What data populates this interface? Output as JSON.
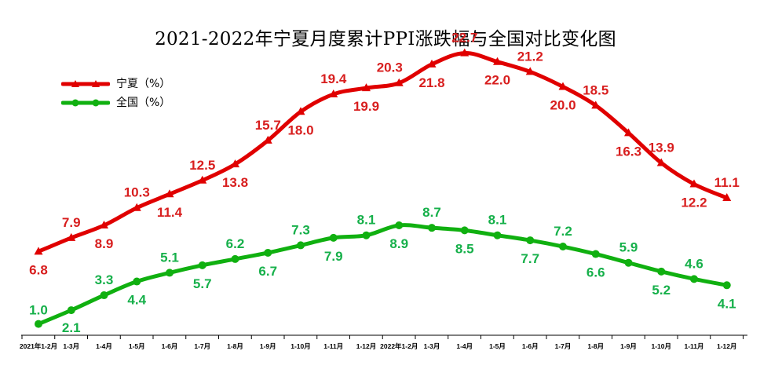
{
  "chart_data": {
    "type": "line",
    "title": "2021-2022年宁夏月度累计PPI涨跌幅与全国对比变化图",
    "categories": [
      "2021年1-2月",
      "1-3月",
      "1-4月",
      "1-5月",
      "1-6月",
      "1-7月",
      "1-8月",
      "1-9月",
      "1-10月",
      "1-11月",
      "1-12月",
      "2022年1-2月",
      "1-3月",
      "1-4月",
      "1-5月",
      "1-6月",
      "1-7月",
      "1-8月",
      "1-9月",
      "1-10月",
      "1-11月",
      "1-12月"
    ],
    "series": [
      {
        "name": "宁夏（%）",
        "color": "#e00000",
        "marker": "triangle",
        "values": [
          6.8,
          7.9,
          8.9,
          10.3,
          11.4,
          12.5,
          13.8,
          15.7,
          18.0,
          19.4,
          19.9,
          20.3,
          21.8,
          22.7,
          22.0,
          21.2,
          20.0,
          18.5,
          16.3,
          13.9,
          12.2,
          11.1
        ]
      },
      {
        "name": "全国（%）",
        "color": "#10b010",
        "marker": "circle",
        "values": [
          1.0,
          2.1,
          3.3,
          4.4,
          5.1,
          5.7,
          6.2,
          6.7,
          7.3,
          7.9,
          8.1,
          8.9,
          8.7,
          8.5,
          8.1,
          7.7,
          7.2,
          6.6,
          5.9,
          5.2,
          4.6,
          4.1
        ]
      }
    ],
    "ylim": [
      0,
      25
    ],
    "grid": false,
    "legend": "top-left",
    "label_color_ningxia": "#d81e1e",
    "label_color_national": "#16b04a"
  }
}
